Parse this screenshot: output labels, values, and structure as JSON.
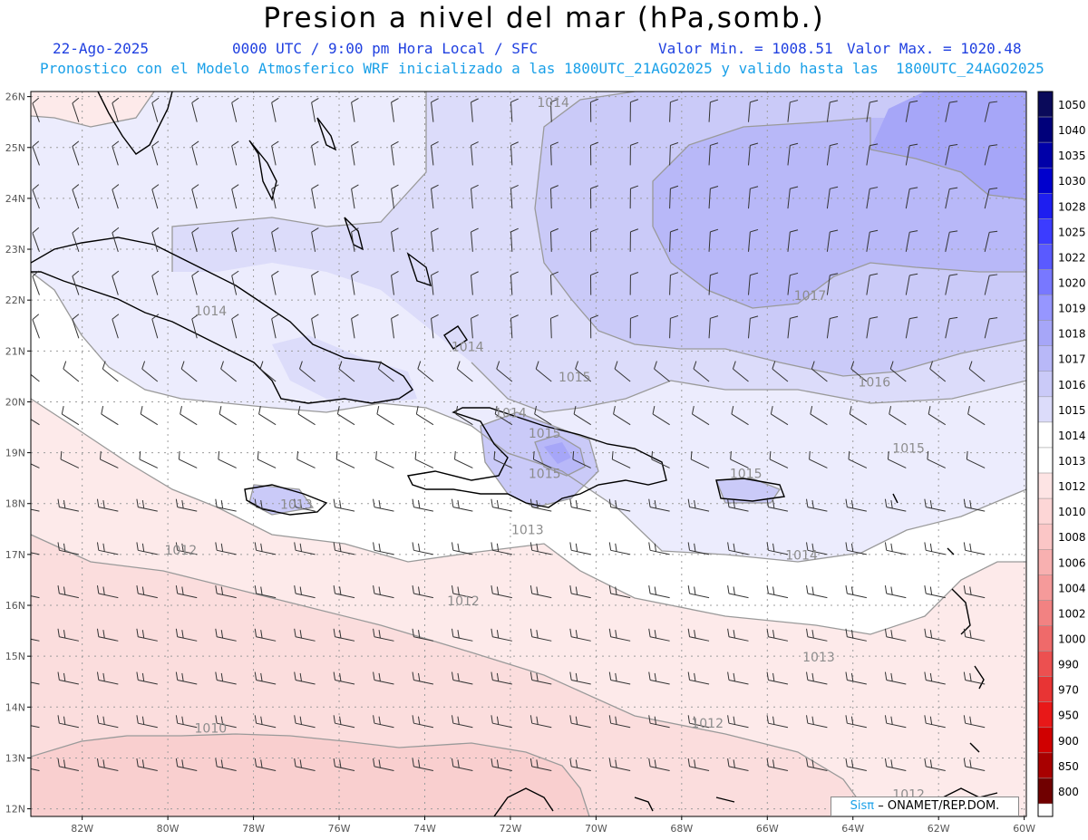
{
  "header": {
    "title": "Presion a nivel del mar (hPa,somb.)",
    "date": "22-Ago-2025",
    "time": "0000 UTC / 9:00 pm Hora Local / SFC",
    "min_label": "Valor Min. = 1008.51",
    "max_label": "Valor Max. = 1020.48",
    "forecast": "Pronostico con el Modelo Atmosferico WRF inicializado a las 1800UTC_21AGO2025 y valido hasta las  1800UTC_24AGO2025"
  },
  "map": {
    "lat_labels": [
      "26N",
      "25N",
      "24N",
      "23N",
      "22N",
      "21N",
      "20N",
      "19N",
      "18N",
      "17N",
      "16N",
      "15N",
      "14N",
      "13N",
      "12N"
    ],
    "lon_labels": [
      "82W",
      "80W",
      "78W",
      "76W",
      "74W",
      "72W",
      "70W",
      "68W",
      "66W",
      "64W",
      "62W",
      "60W"
    ],
    "isobar_labels": [
      {
        "text": "1014",
        "lon": -73.0,
        "lat": 21.0
      },
      {
        "text": "1014",
        "lon": -71.0,
        "lat": 25.8
      },
      {
        "text": "1014",
        "lon": -79.0,
        "lat": 21.7
      },
      {
        "text": "1014",
        "lon": -65.2,
        "lat": 16.9
      },
      {
        "text": "1014",
        "lon": -72.0,
        "lat": 19.7
      },
      {
        "text": "1015",
        "lon": -70.5,
        "lat": 20.4
      },
      {
        "text": "1015",
        "lon": -71.2,
        "lat": 19.3
      },
      {
        "text": "1015",
        "lon": -71.2,
        "lat": 18.5
      },
      {
        "text": "1015",
        "lon": -66.5,
        "lat": 18.5
      },
      {
        "text": "1015",
        "lon": -62.7,
        "lat": 19.0
      },
      {
        "text": "1016",
        "lon": -63.5,
        "lat": 20.3
      },
      {
        "text": "1017",
        "lon": -65.0,
        "lat": 22.0
      },
      {
        "text": "1013",
        "lon": -77.0,
        "lat": 17.9
      },
      {
        "text": "1013",
        "lon": -71.6,
        "lat": 17.4
      },
      {
        "text": "1013",
        "lon": -64.8,
        "lat": 14.9
      },
      {
        "text": "1012",
        "lon": -79.7,
        "lat": 17.0
      },
      {
        "text": "1012",
        "lon": -73.1,
        "lat": 16.0
      },
      {
        "text": "1012",
        "lon": -67.4,
        "lat": 13.6
      },
      {
        "text": "1012",
        "lon": -62.7,
        "lat": 12.2
      },
      {
        "text": "1010",
        "lon": -79.0,
        "lat": 13.5
      }
    ]
  },
  "colorbar": {
    "labels": [
      "1050",
      "1040",
      "1035",
      "1030",
      "1028",
      "1025",
      "1022",
      "1020",
      "1019",
      "1018",
      "1017",
      "1016",
      "1015",
      "1014",
      "1013",
      "1012",
      "1010",
      "1008",
      "1006",
      "1004",
      "1002",
      "1000",
      "990",
      "970",
      "950",
      "900",
      "850",
      "800"
    ],
    "colors": [
      "#0a0a5a",
      "#00007a",
      "#0000a8",
      "#0000cd",
      "#1e1ef0",
      "#3c3cff",
      "#5a5aff",
      "#7878ff",
      "#9696ff",
      "#a6a6f8",
      "#b8b8f8",
      "#cacaf8",
      "#dcdcfa",
      "#ffffff",
      "#ffffff",
      "#fde4e4",
      "#fdd6d6",
      "#fbc6c6",
      "#f8b0b0",
      "#f59a9a",
      "#f28282",
      "#ef6a6a",
      "#ec5050",
      "#e83434",
      "#e81818",
      "#d00000",
      "#a80000",
      "#700000"
    ]
  },
  "credit": {
    "sis": "Sisπ",
    "text": "– ONAMET/REP.DOM."
  }
}
